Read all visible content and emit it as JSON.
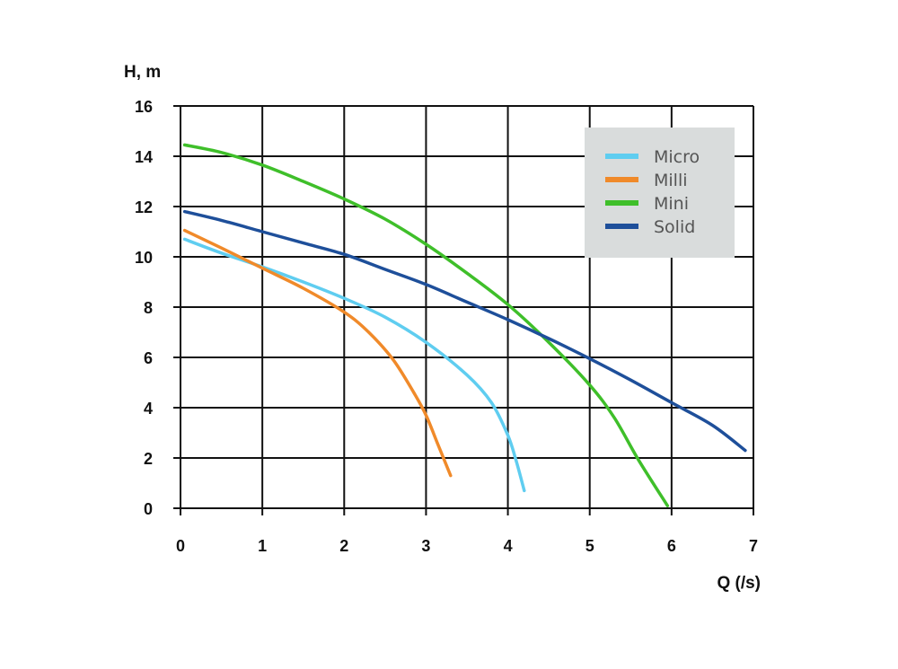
{
  "chart_data": {
    "type": "line",
    "title": "",
    "xlabel": "Q (/s)",
    "ylabel": "H, m",
    "xlim": [
      0,
      7
    ],
    "ylim": [
      0,
      16
    ],
    "xticks": [
      "0",
      "1",
      "2",
      "3",
      "4",
      "5",
      "6",
      "7"
    ],
    "yticks": [
      "0",
      "2",
      "4",
      "6",
      "8",
      "10",
      "12",
      "14",
      "16"
    ],
    "grid": true,
    "legend_position": "top-right",
    "series": [
      {
        "name": "Micro",
        "color": "#5fcdf0",
        "points": [
          [
            0.05,
            10.7
          ],
          [
            0.5,
            10.15
          ],
          [
            1.0,
            9.6
          ],
          [
            1.5,
            9.0
          ],
          [
            2.0,
            8.35
          ],
          [
            2.5,
            7.6
          ],
          [
            3.0,
            6.6
          ],
          [
            3.5,
            5.3
          ],
          [
            3.8,
            4.2
          ],
          [
            4.0,
            2.9
          ],
          [
            4.1,
            1.9
          ],
          [
            4.2,
            0.7
          ]
        ]
      },
      {
        "name": "Milli",
        "color": "#f08a2a",
        "points": [
          [
            0.05,
            11.05
          ],
          [
            0.5,
            10.35
          ],
          [
            1.0,
            9.55
          ],
          [
            1.5,
            8.75
          ],
          [
            2.0,
            7.8
          ],
          [
            2.3,
            7.0
          ],
          [
            2.6,
            5.9
          ],
          [
            2.85,
            4.6
          ],
          [
            3.0,
            3.7
          ],
          [
            3.15,
            2.5
          ],
          [
            3.3,
            1.3
          ]
        ]
      },
      {
        "name": "Mini",
        "color": "#3fbf2a",
        "points": [
          [
            0.05,
            14.45
          ],
          [
            0.5,
            14.15
          ],
          [
            1.0,
            13.65
          ],
          [
            1.5,
            13.0
          ],
          [
            2.0,
            12.3
          ],
          [
            2.5,
            11.5
          ],
          [
            3.0,
            10.5
          ],
          [
            3.5,
            9.35
          ],
          [
            4.0,
            8.1
          ],
          [
            4.5,
            6.6
          ],
          [
            5.0,
            4.9
          ],
          [
            5.3,
            3.6
          ],
          [
            5.6,
            1.9
          ],
          [
            5.95,
            0.1
          ]
        ]
      },
      {
        "name": "Solid",
        "color": "#1e4f9a",
        "points": [
          [
            0.05,
            11.8
          ],
          [
            0.5,
            11.45
          ],
          [
            1.0,
            11.0
          ],
          [
            1.5,
            10.55
          ],
          [
            2.0,
            10.1
          ],
          [
            2.5,
            9.5
          ],
          [
            3.0,
            8.9
          ],
          [
            3.5,
            8.2
          ],
          [
            4.0,
            7.5
          ],
          [
            4.5,
            6.75
          ],
          [
            5.0,
            5.95
          ],
          [
            5.5,
            5.1
          ],
          [
            6.0,
            4.2
          ],
          [
            6.5,
            3.3
          ],
          [
            6.9,
            2.3
          ]
        ]
      }
    ]
  },
  "legend": {
    "background": "#d9dcdc"
  }
}
